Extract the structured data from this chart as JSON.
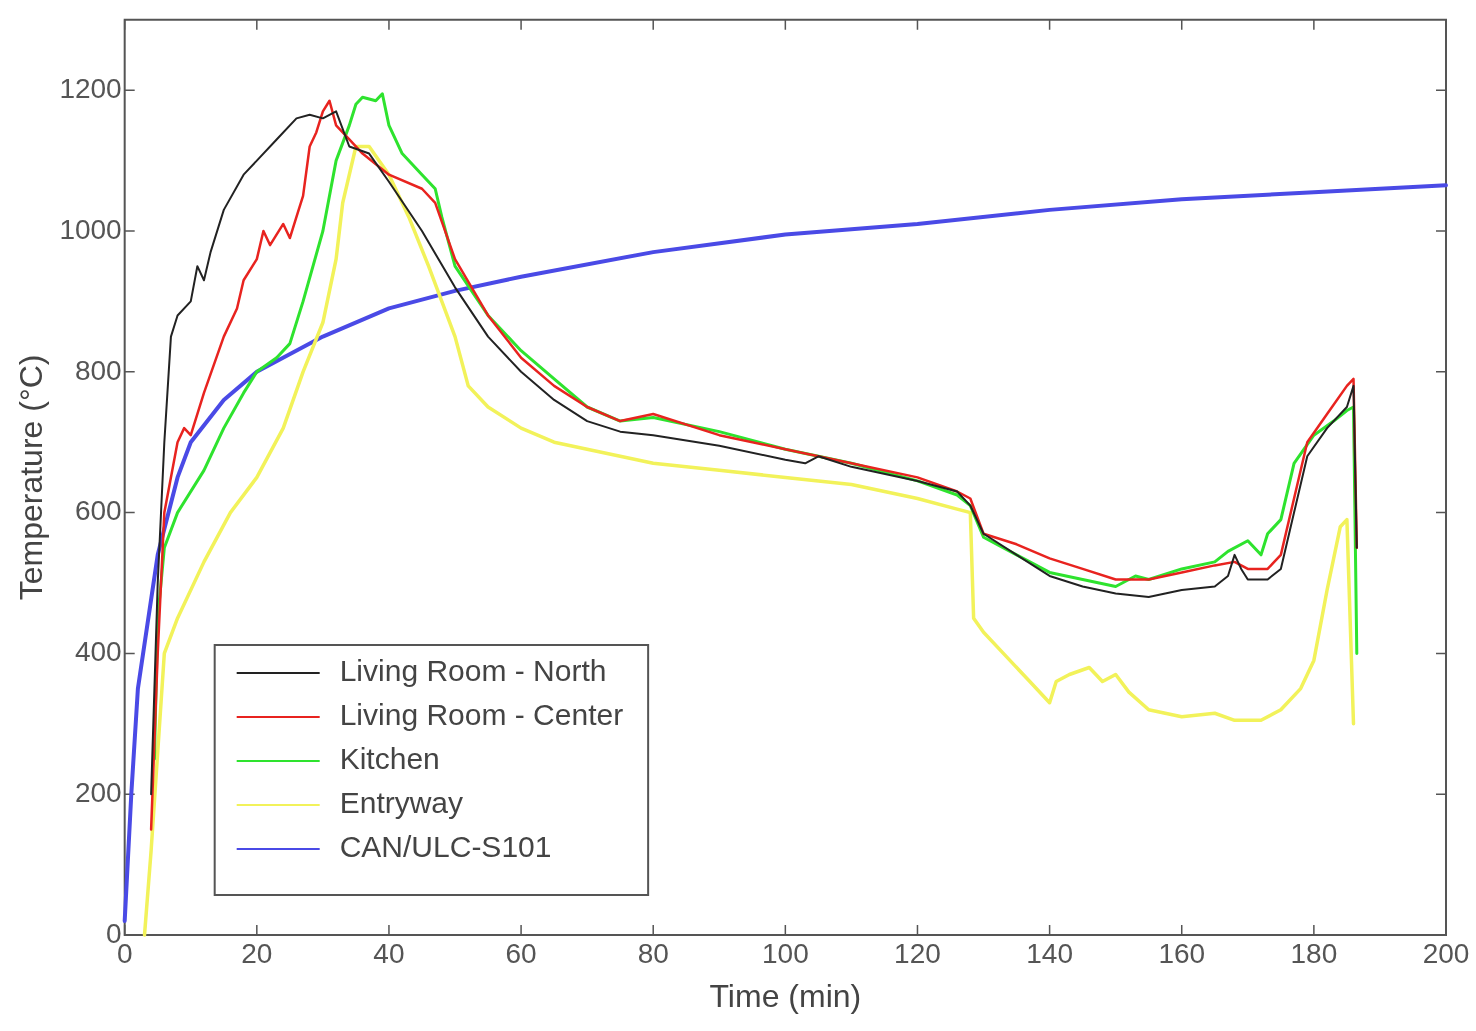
{
  "chart_data": {
    "type": "line",
    "xlabel": "Time (min)",
    "ylabel": "Temperature (°C)",
    "xlim": [
      0,
      200
    ],
    "xticks": [
      0,
      20,
      40,
      60,
      80,
      100,
      120,
      140,
      160,
      180,
      200
    ],
    "ylim": [
      0,
      1300
    ],
    "yticks": [
      0,
      200,
      400,
      600,
      800,
      1000,
      1200
    ],
    "grid": false,
    "legend": "bottom left",
    "marker": "none",
    "line_style": "solid",
    "series": [
      {
        "name": "Living Room - North",
        "color": "#222222",
        "x": [
          4,
          5,
          6,
          7,
          8,
          10,
          11,
          12,
          13,
          15,
          18,
          20,
          23,
          26,
          28,
          30,
          32,
          34,
          37,
          40,
          45,
          50,
          55,
          60,
          65,
          70,
          75,
          80,
          90,
          100,
          103,
          105,
          110,
          120,
          126,
          128,
          130,
          135,
          140,
          145,
          150,
          155,
          160,
          165,
          167,
          168,
          169,
          170,
          173,
          175,
          177,
          179,
          182,
          185,
          186,
          186.5
        ],
        "values": [
          200,
          500,
          700,
          850,
          880,
          900,
          950,
          930,
          970,
          1030,
          1080,
          1100,
          1130,
          1160,
          1165,
          1160,
          1170,
          1120,
          1110,
          1070,
          1000,
          920,
          850,
          800,
          760,
          730,
          715,
          710,
          695,
          675,
          670,
          680,
          665,
          645,
          630,
          610,
          570,
          540,
          510,
          495,
          485,
          480,
          490,
          495,
          510,
          540,
          520,
          505,
          505,
          520,
          600,
          680,
          720,
          750,
          780,
          550
        ]
      },
      {
        "name": "Living Room - Center",
        "color": "#e8231f",
        "x": [
          4,
          5,
          6,
          8,
          9,
          10,
          12,
          15,
          17,
          18,
          20,
          21,
          22,
          24,
          25,
          26,
          27,
          28,
          29,
          30,
          31,
          32,
          34,
          36,
          40,
          45,
          47,
          50,
          55,
          60,
          65,
          70,
          75,
          80,
          90,
          100,
          110,
          120,
          126,
          128,
          130,
          135,
          140,
          145,
          150,
          155,
          160,
          165,
          168,
          170,
          173,
          175,
          177,
          179,
          182,
          185,
          186,
          186.5
        ],
        "values": [
          150,
          400,
          600,
          700,
          720,
          710,
          770,
          850,
          890,
          930,
          960,
          1000,
          980,
          1010,
          990,
          1020,
          1050,
          1120,
          1140,
          1170,
          1185,
          1150,
          1130,
          1110,
          1080,
          1060,
          1040,
          960,
          880,
          820,
          780,
          750,
          730,
          740,
          710,
          690,
          670,
          650,
          630,
          620,
          570,
          555,
          535,
          520,
          505,
          505,
          515,
          525,
          530,
          520,
          520,
          540,
          620,
          700,
          740,
          780,
          790,
          550
        ]
      },
      {
        "name": "Kitchen",
        "color": "#2ee32e",
        "x": [
          4.5,
          5,
          6,
          8,
          12,
          15,
          18,
          20,
          23,
          25,
          27,
          30,
          32,
          34,
          35,
          36,
          38,
          39,
          40,
          42,
          45,
          47,
          48,
          50,
          55,
          60,
          65,
          70,
          75,
          80,
          90,
          100,
          110,
          120,
          126,
          128,
          130,
          135,
          140,
          145,
          150,
          153,
          155,
          160,
          165,
          167,
          170,
          172,
          173,
          175,
          177,
          180,
          183,
          185,
          186,
          186.5
        ],
        "values": [
          250,
          450,
          550,
          600,
          660,
          720,
          770,
          800,
          820,
          840,
          900,
          1000,
          1100,
          1150,
          1180,
          1190,
          1185,
          1195,
          1150,
          1110,
          1080,
          1060,
          1020,
          950,
          880,
          830,
          790,
          750,
          730,
          735,
          715,
          690,
          670,
          645,
          625,
          610,
          565,
          540,
          515,
          505,
          495,
          510,
          505,
          520,
          530,
          545,
          560,
          540,
          570,
          590,
          670,
          710,
          730,
          745,
          750,
          400
        ]
      },
      {
        "name": "Entryway",
        "color": "#f2f25a",
        "x": [
          3,
          4,
          6,
          8,
          12,
          16,
          20,
          24,
          27,
          30,
          32,
          33,
          35,
          37,
          40,
          43,
          46,
          48,
          50,
          52,
          55,
          60,
          65,
          70,
          80,
          90,
          100,
          110,
          120,
          126,
          128,
          128.5,
          130,
          133,
          137,
          140,
          141,
          143,
          146,
          148,
          150,
          152,
          155,
          160,
          165,
          168,
          172,
          175,
          178,
          180,
          182,
          184,
          185,
          186
        ],
        "values": [
          0,
          120,
          400,
          450,
          530,
          600,
          650,
          720,
          800,
          870,
          960,
          1040,
          1120,
          1120,
          1080,
          1020,
          950,
          900,
          850,
          780,
          750,
          720,
          700,
          690,
          670,
          660,
          650,
          640,
          620,
          605,
          600,
          450,
          430,
          400,
          360,
          330,
          360,
          370,
          380,
          360,
          370,
          345,
          320,
          310,
          315,
          305,
          305,
          320,
          350,
          390,
          490,
          580,
          590,
          300
        ]
      },
      {
        "name": "CAN/ULC-S101",
        "color": "#4a4ae6",
        "x": [
          0,
          1,
          2,
          5,
          8,
          10,
          15,
          20,
          30,
          40,
          50,
          60,
          80,
          100,
          120,
          140,
          160,
          180,
          200
        ],
        "values": [
          20,
          200,
          350,
          540,
          650,
          700,
          760,
          800,
          850,
          890,
          915,
          935,
          970,
          995,
          1010,
          1030,
          1045,
          1055,
          1065
        ]
      }
    ]
  }
}
